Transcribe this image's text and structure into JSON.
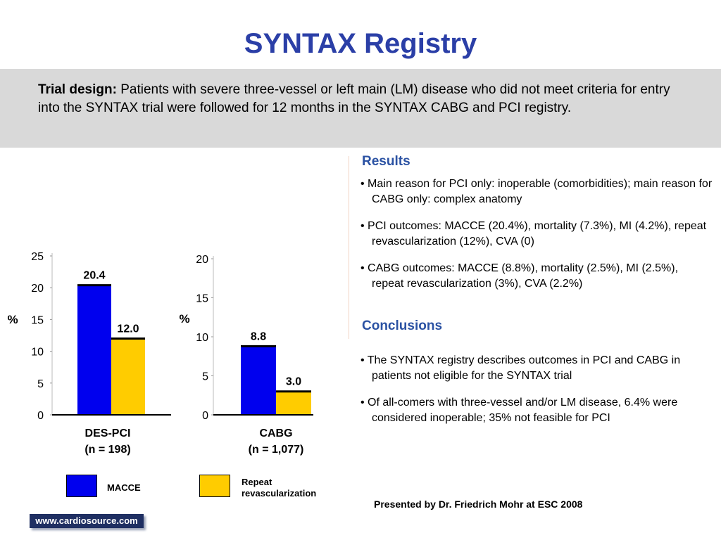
{
  "title": "SYNTAX Registry",
  "trial_design": {
    "label": "Trial design:",
    "text": " Patients with severe three-vessel or left main (LM) disease who did not meet criteria for entry into the SYNTAX trial were followed for 12 months in the SYNTAX CABG and PCI registry."
  },
  "results": {
    "heading": "Results",
    "bullets": [
      "Main reason for PCI only: inoperable (comorbidities); main reason for CABG only: complex anatomy",
      "PCI outcomes: MACCE (20.4%), mortality (7.3%), MI (4.2%), repeat revascularization (12%), CVA (0)",
      "CABG outcomes: MACCE (8.8%), mortality (2.5%), MI (2.5%), repeat revascularization (3%), CVA (2.2%)"
    ]
  },
  "conclusions": {
    "heading": "Conclusions",
    "bullets": [
      "The SYNTAX registry describes outcomes in PCI and CABG in patients not eligible for the SYNTAX trial",
      "Of all-comers with three-vessel and/or LM disease, 6.4% were considered inoperable; 35% not feasible for PCI"
    ]
  },
  "presented_by": "Presented by Dr. Friedrich Mohr at ESC 2008",
  "logo_text": "www.cardiosource.com",
  "colors": {
    "macce": "#0000ee",
    "repeat": "#ffcc00",
    "title": "#2b3fa7"
  },
  "legend": [
    {
      "label": "MACCE",
      "color": "#0000ee"
    },
    {
      "label": "Repeat revascularization",
      "color": "#ffcc00"
    }
  ],
  "chart_data": [
    {
      "type": "bar",
      "ylabel": "%",
      "ylim": [
        0,
        25
      ],
      "yticks": [
        0,
        5,
        10,
        15,
        20,
        25
      ],
      "category": [
        "DES-PCI",
        "(n = 198)"
      ],
      "series": [
        {
          "name": "MACCE",
          "value": 20.4,
          "label": "20.4"
        },
        {
          "name": "Repeat revascularization",
          "value": 12.0,
          "label": "12.0"
        }
      ]
    },
    {
      "type": "bar",
      "ylabel": "%",
      "ylim": [
        0,
        20
      ],
      "yticks": [
        0,
        5,
        10,
        15,
        20
      ],
      "category": [
        "CABG",
        "(n = 1,077)"
      ],
      "series": [
        {
          "name": "MACCE",
          "value": 8.8,
          "label": "8.8"
        },
        {
          "name": "Repeat revascularization",
          "value": 3.0,
          "label": "3.0"
        }
      ]
    }
  ]
}
